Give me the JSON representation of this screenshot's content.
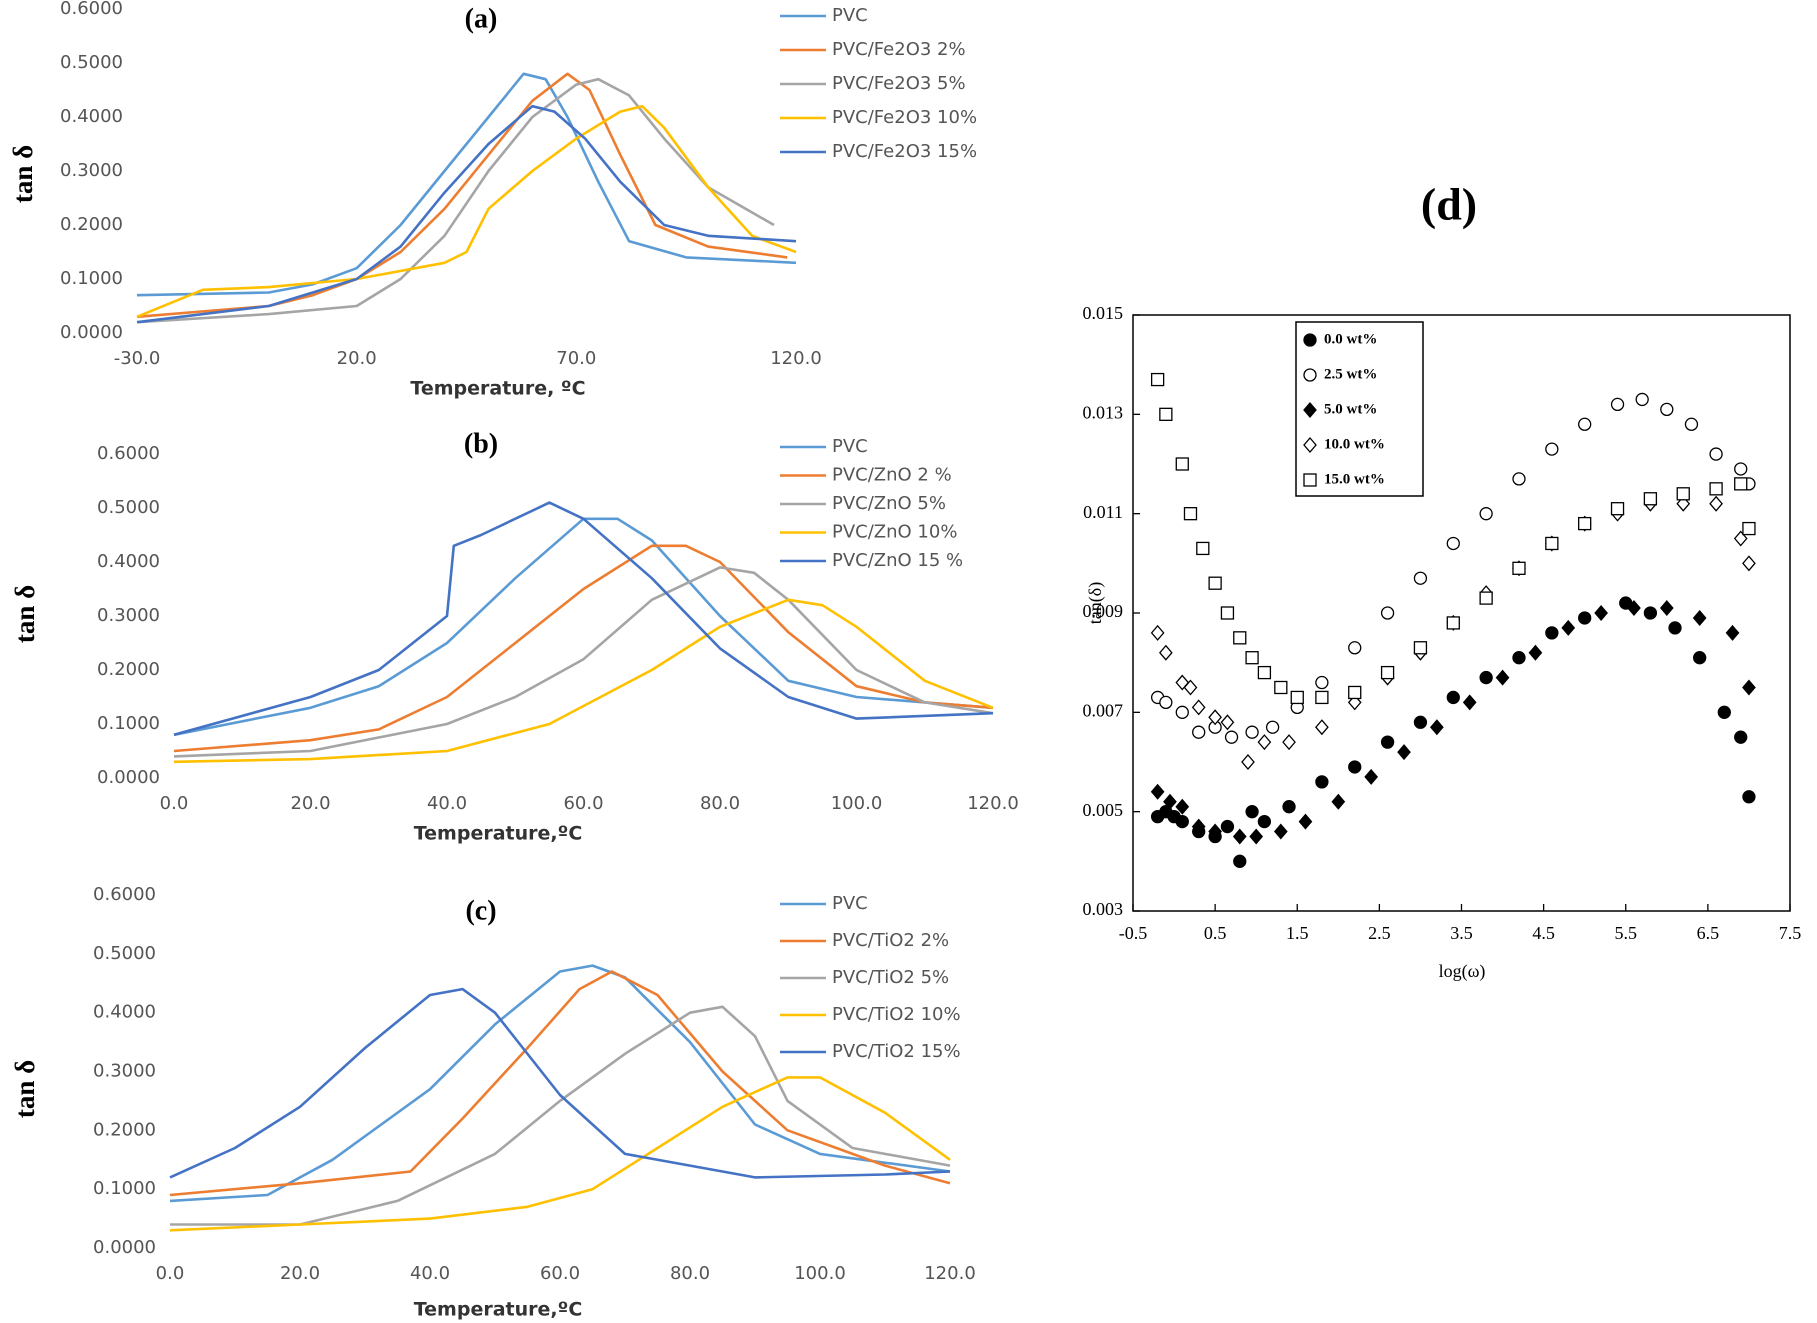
{
  "chart_data": [
    {
      "type": "line",
      "title": "(a)",
      "xlabel": "Temperature, ºC",
      "ylabel": "tan δ",
      "legend": "right",
      "grid": false,
      "xlim": [
        -30,
        120
      ],
      "ylim": [
        0,
        0.6
      ],
      "xticks": [
        {
          "value": -30,
          "label": "-30.0"
        },
        {
          "value": 20,
          "label": "20.0"
        },
        {
          "value": 70,
          "label": "70.0"
        },
        {
          "value": 120,
          "label": "120.0"
        }
      ],
      "yticks": [
        {
          "value": 0,
          "label": "0.0000"
        },
        {
          "value": 0.1,
          "label": "0.1000"
        },
        {
          "value": 0.2,
          "label": "0.2000"
        },
        {
          "value": 0.3,
          "label": "0.3000"
        },
        {
          "value": 0.4,
          "label": "0.4000"
        },
        {
          "value": 0.5,
          "label": "0.5000"
        },
        {
          "value": 0.6,
          "label": "0.6000"
        }
      ],
      "series": [
        {
          "name": "PVC",
          "color": "#5b9bd5",
          "x": [
            -30,
            0,
            10,
            20,
            30,
            40,
            50,
            58,
            63,
            68,
            75,
            82,
            95,
            120
          ],
          "values": [
            0.07,
            0.075,
            0.09,
            0.12,
            0.2,
            0.3,
            0.4,
            0.48,
            0.47,
            0.4,
            0.28,
            0.17,
            0.14,
            0.13
          ]
        },
        {
          "name": "PVC/Fe2O3 2%",
          "color": "#ed7d31",
          "x": [
            -30,
            0,
            10,
            20,
            30,
            40,
            50,
            60,
            68,
            73,
            80,
            88,
            100,
            118
          ],
          "values": [
            0.03,
            0.05,
            0.07,
            0.1,
            0.15,
            0.23,
            0.33,
            0.43,
            0.48,
            0.45,
            0.33,
            0.2,
            0.16,
            0.14
          ]
        },
        {
          "name": "PVC/Fe2O3 5%",
          "color": "#a5a5a5",
          "x": [
            -30,
            0,
            20,
            30,
            40,
            50,
            60,
            70,
            75,
            82,
            90,
            100,
            115
          ],
          "values": [
            0.02,
            0.035,
            0.05,
            0.1,
            0.18,
            0.3,
            0.4,
            0.46,
            0.47,
            0.44,
            0.36,
            0.27,
            0.2
          ]
        },
        {
          "name": "PVC/Fe2O3 10%",
          "color": "#ffc000",
          "x": [
            -30,
            -15,
            0,
            20,
            40,
            45,
            50,
            60,
            70,
            80,
            85,
            90,
            100,
            110,
            120
          ],
          "values": [
            0.03,
            0.08,
            0.085,
            0.1,
            0.13,
            0.15,
            0.23,
            0.3,
            0.36,
            0.41,
            0.42,
            0.38,
            0.27,
            0.18,
            0.15
          ]
        },
        {
          "name": "PVC/Fe2O3 15%",
          "color": "#4472c4",
          "x": [
            -30,
            0,
            20,
            30,
            40,
            50,
            60,
            65,
            72,
            80,
            90,
            100,
            120
          ],
          "values": [
            0.02,
            0.05,
            0.1,
            0.16,
            0.26,
            0.35,
            0.42,
            0.41,
            0.36,
            0.28,
            0.2,
            0.18,
            0.17
          ]
        }
      ]
    },
    {
      "type": "line",
      "title": "(b)",
      "xlabel": "Temperature,ºC",
      "ylabel": "tan δ",
      "legend": "right",
      "grid": false,
      "xlim": [
        0,
        120
      ],
      "ylim": [
        0,
        0.6
      ],
      "xticks": [
        {
          "value": 0,
          "label": "0.0"
        },
        {
          "value": 20,
          "label": "20.0"
        },
        {
          "value": 40,
          "label": "40.0"
        },
        {
          "value": 60,
          "label": "60.0"
        },
        {
          "value": 80,
          "label": "80.0"
        },
        {
          "value": 100,
          "label": "100.0"
        },
        {
          "value": 120,
          "label": "120.0"
        }
      ],
      "yticks": [
        {
          "value": 0,
          "label": "0.0000"
        },
        {
          "value": 0.1,
          "label": "0.1000"
        },
        {
          "value": 0.2,
          "label": "0.2000"
        },
        {
          "value": 0.3,
          "label": "0.3000"
        },
        {
          "value": 0.4,
          "label": "0.4000"
        },
        {
          "value": 0.5,
          "label": "0.5000"
        },
        {
          "value": 0.6,
          "label": "0.6000"
        }
      ],
      "series": [
        {
          "name": "PVC",
          "color": "#5b9bd5",
          "x": [
            0,
            20,
            30,
            40,
            50,
            60,
            65,
            70,
            80,
            90,
            100,
            120
          ],
          "values": [
            0.08,
            0.13,
            0.17,
            0.25,
            0.37,
            0.48,
            0.48,
            0.44,
            0.3,
            0.18,
            0.15,
            0.13
          ]
        },
        {
          "name": "PVC/ZnO 2 %",
          "color": "#ed7d31",
          "x": [
            0,
            20,
            30,
            40,
            50,
            60,
            70,
            75,
            80,
            90,
            100,
            110,
            120
          ],
          "values": [
            0.05,
            0.07,
            0.09,
            0.15,
            0.25,
            0.35,
            0.43,
            0.43,
            0.4,
            0.27,
            0.17,
            0.14,
            0.13
          ]
        },
        {
          "name": "PVC/ZnO 5%",
          "color": "#a5a5a5",
          "x": [
            0,
            20,
            40,
            50,
            60,
            70,
            80,
            85,
            90,
            100,
            110,
            120
          ],
          "values": [
            0.04,
            0.05,
            0.1,
            0.15,
            0.22,
            0.33,
            0.39,
            0.38,
            0.33,
            0.2,
            0.14,
            0.12
          ]
        },
        {
          "name": "PVC/ZnO 10%",
          "color": "#ffc000",
          "x": [
            0,
            20,
            40,
            55,
            70,
            80,
            90,
            95,
            100,
            110,
            120
          ],
          "values": [
            0.03,
            0.035,
            0.05,
            0.1,
            0.2,
            0.28,
            0.33,
            0.32,
            0.28,
            0.18,
            0.13
          ]
        },
        {
          "name": "PVC/ZnO 15 %",
          "color": "#4472c4",
          "x": [
            0,
            20,
            30,
            40,
            41,
            45,
            55,
            60,
            70,
            80,
            90,
            100,
            120
          ],
          "values": [
            0.08,
            0.15,
            0.2,
            0.3,
            0.43,
            0.45,
            0.51,
            0.48,
            0.37,
            0.24,
            0.15,
            0.11,
            0.12
          ]
        }
      ]
    },
    {
      "type": "line",
      "title": "(c)",
      "xlabel": "Temperature,ºC",
      "ylabel": "tan δ",
      "legend": "right",
      "grid": false,
      "xlim": [
        0,
        120
      ],
      "ylim": [
        0,
        0.6
      ],
      "xticks": [
        {
          "value": 0,
          "label": "0.0"
        },
        {
          "value": 20,
          "label": "20.0"
        },
        {
          "value": 40,
          "label": "40.0"
        },
        {
          "value": 60,
          "label": "60.0"
        },
        {
          "value": 80,
          "label": "80.0"
        },
        {
          "value": 100,
          "label": "100.0"
        },
        {
          "value": 120,
          "label": "120.0"
        }
      ],
      "yticks": [
        {
          "value": 0,
          "label": "0.0000"
        },
        {
          "value": 0.1,
          "label": "0.1000"
        },
        {
          "value": 0.2,
          "label": "0.2000"
        },
        {
          "value": 0.3,
          "label": "0.3000"
        },
        {
          "value": 0.4,
          "label": "0.4000"
        },
        {
          "value": 0.5,
          "label": "0.5000"
        },
        {
          "value": 0.6,
          "label": "0.6000"
        }
      ],
      "series": [
        {
          "name": "PVC",
          "color": "#5b9bd5",
          "x": [
            0,
            15,
            25,
            40,
            50,
            60,
            65,
            70,
            80,
            90,
            100,
            120
          ],
          "values": [
            0.08,
            0.09,
            0.15,
            0.27,
            0.38,
            0.47,
            0.48,
            0.46,
            0.35,
            0.21,
            0.16,
            0.13
          ]
        },
        {
          "name": "PVC/TiO2 2%",
          "color": "#ed7d31",
          "x": [
            0,
            20,
            37,
            45,
            55,
            63,
            68,
            75,
            85,
            95,
            110,
            120
          ],
          "values": [
            0.09,
            0.11,
            0.13,
            0.22,
            0.34,
            0.44,
            0.47,
            0.43,
            0.3,
            0.2,
            0.14,
            0.11
          ]
        },
        {
          "name": "PVC/TiO2 5%",
          "color": "#a5a5a5",
          "x": [
            0,
            20,
            35,
            50,
            60,
            70,
            80,
            85,
            90,
            95,
            105,
            120
          ],
          "values": [
            0.04,
            0.04,
            0.08,
            0.16,
            0.25,
            0.33,
            0.4,
            0.41,
            0.36,
            0.25,
            0.17,
            0.14
          ]
        },
        {
          "name": "PVC/TiO2 10%",
          "color": "#ffc000",
          "x": [
            0,
            20,
            40,
            55,
            65,
            75,
            85,
            95,
            100,
            110,
            120
          ],
          "values": [
            0.03,
            0.04,
            0.05,
            0.07,
            0.1,
            0.17,
            0.24,
            0.29,
            0.29,
            0.23,
            0.15
          ]
        },
        {
          "name": "PVC/TiO2 15%",
          "color": "#4472c4",
          "x": [
            0,
            10,
            20,
            30,
            40,
            45,
            50,
            60,
            70,
            80,
            90,
            110,
            120
          ],
          "values": [
            0.12,
            0.17,
            0.24,
            0.34,
            0.43,
            0.44,
            0.4,
            0.26,
            0.16,
            0.14,
            0.12,
            0.125,
            0.13
          ]
        }
      ]
    },
    {
      "type": "scatter",
      "title": "(d)",
      "xlabel": "log(ω)",
      "ylabel": "tan(δ)",
      "legend": "upper left",
      "grid": false,
      "xlim": [
        -0.5,
        7.5
      ],
      "ylim": [
        0.003,
        0.015
      ],
      "xticks": [
        -0.5,
        0.5,
        1.5,
        2.5,
        3.5,
        4.5,
        5.5,
        6.5,
        7.5
      ],
      "yticks": [
        0.003,
        0.005,
        0.007,
        0.009,
        0.011,
        0.013,
        0.015
      ],
      "series": [
        {
          "name": "0.0 wt%",
          "color": "#000000",
          "marker": "filled-circle",
          "x": [
            -0.2,
            -0.1,
            0,
            0.1,
            0.3,
            0.5,
            0.65,
            0.8,
            0.95,
            1.1,
            1.4,
            1.8,
            2.2,
            2.6,
            3,
            3.4,
            3.8,
            4.2,
            4.6,
            5,
            5.5,
            5.8,
            6.1,
            6.4,
            6.7,
            6.9,
            7
          ],
          "values": [
            0.0049,
            0.005,
            0.0049,
            0.0048,
            0.0046,
            0.0045,
            0.0047,
            0.004,
            0.005,
            0.0048,
            0.0051,
            0.0056,
            0.0059,
            0.0064,
            0.0068,
            0.0073,
            0.0077,
            0.0081,
            0.0086,
            0.0089,
            0.0092,
            0.009,
            0.0087,
            0.0081,
            0.007,
            0.0065,
            0.0053
          ]
        },
        {
          "name": "2.5 wt%",
          "color": "#000000",
          "marker": "open-circle",
          "x": [
            -0.2,
            -0.1,
            0.1,
            0.3,
            0.5,
            0.7,
            0.95,
            1.2,
            1.5,
            1.8,
            2.2,
            2.6,
            3,
            3.4,
            3.8,
            4.2,
            4.6,
            5,
            5.4,
            5.7,
            6,
            6.3,
            6.6,
            6.9,
            7
          ],
          "values": [
            0.0073,
            0.0072,
            0.007,
            0.0066,
            0.0067,
            0.0065,
            0.0066,
            0.0067,
            0.0071,
            0.0076,
            0.0083,
            0.009,
            0.0097,
            0.0104,
            0.011,
            0.0117,
            0.0123,
            0.0128,
            0.0132,
            0.0133,
            0.0131,
            0.0128,
            0.0122,
            0.0119,
            0.0116
          ]
        },
        {
          "name": "5.0 wt%",
          "color": "#000000",
          "marker": "filled-diamond",
          "x": [
            -0.2,
            -0.05,
            0.1,
            0.3,
            0.5,
            0.8,
            1,
            1.3,
            1.6,
            2,
            2.4,
            2.8,
            3.2,
            3.6,
            4,
            4.4,
            4.8,
            5.2,
            5.6,
            6,
            6.4,
            6.8,
            7
          ],
          "values": [
            0.0054,
            0.0052,
            0.0051,
            0.0047,
            0.0046,
            0.0045,
            0.0045,
            0.0046,
            0.0048,
            0.0052,
            0.0057,
            0.0062,
            0.0067,
            0.0072,
            0.0077,
            0.0082,
            0.0087,
            0.009,
            0.0091,
            0.0091,
            0.0089,
            0.0086,
            0.0075
          ]
        },
        {
          "name": "10.0 wt%",
          "color": "#000000",
          "marker": "open-diamond",
          "x": [
            -0.2,
            -0.1,
            0.1,
            0.2,
            0.3,
            0.5,
            0.65,
            0.9,
            1.1,
            1.4,
            1.8,
            2.2,
            2.6,
            3,
            3.4,
            3.8,
            4.2,
            4.6,
            5,
            5.4,
            5.8,
            6.2,
            6.6,
            6.9,
            7
          ],
          "values": [
            0.0086,
            0.0082,
            0.0076,
            0.0075,
            0.0071,
            0.0069,
            0.0068,
            0.006,
            0.0064,
            0.0064,
            0.0067,
            0.0072,
            0.0077,
            0.0082,
            0.0088,
            0.0094,
            0.0099,
            0.0104,
            0.0108,
            0.011,
            0.0112,
            0.0112,
            0.0112,
            0.0105,
            0.01
          ]
        },
        {
          "name": "15.0 wt%",
          "color": "#000000",
          "marker": "open-square",
          "x": [
            -0.2,
            -0.1,
            0.1,
            0.2,
            0.35,
            0.5,
            0.65,
            0.8,
            0.95,
            1.1,
            1.3,
            1.5,
            1.8,
            2.2,
            2.6,
            3,
            3.4,
            3.8,
            4.2,
            4.6,
            5,
            5.4,
            5.8,
            6.2,
            6.6,
            6.9,
            7
          ],
          "values": [
            0.0137,
            0.013,
            0.012,
            0.011,
            0.0103,
            0.0096,
            0.009,
            0.0085,
            0.0081,
            0.0078,
            0.0075,
            0.0073,
            0.0073,
            0.0074,
            0.0078,
            0.0083,
            0.0088,
            0.0093,
            0.0099,
            0.0104,
            0.0108,
            0.0111,
            0.0113,
            0.0114,
            0.0115,
            0.0116,
            0.0107
          ]
        }
      ]
    }
  ]
}
